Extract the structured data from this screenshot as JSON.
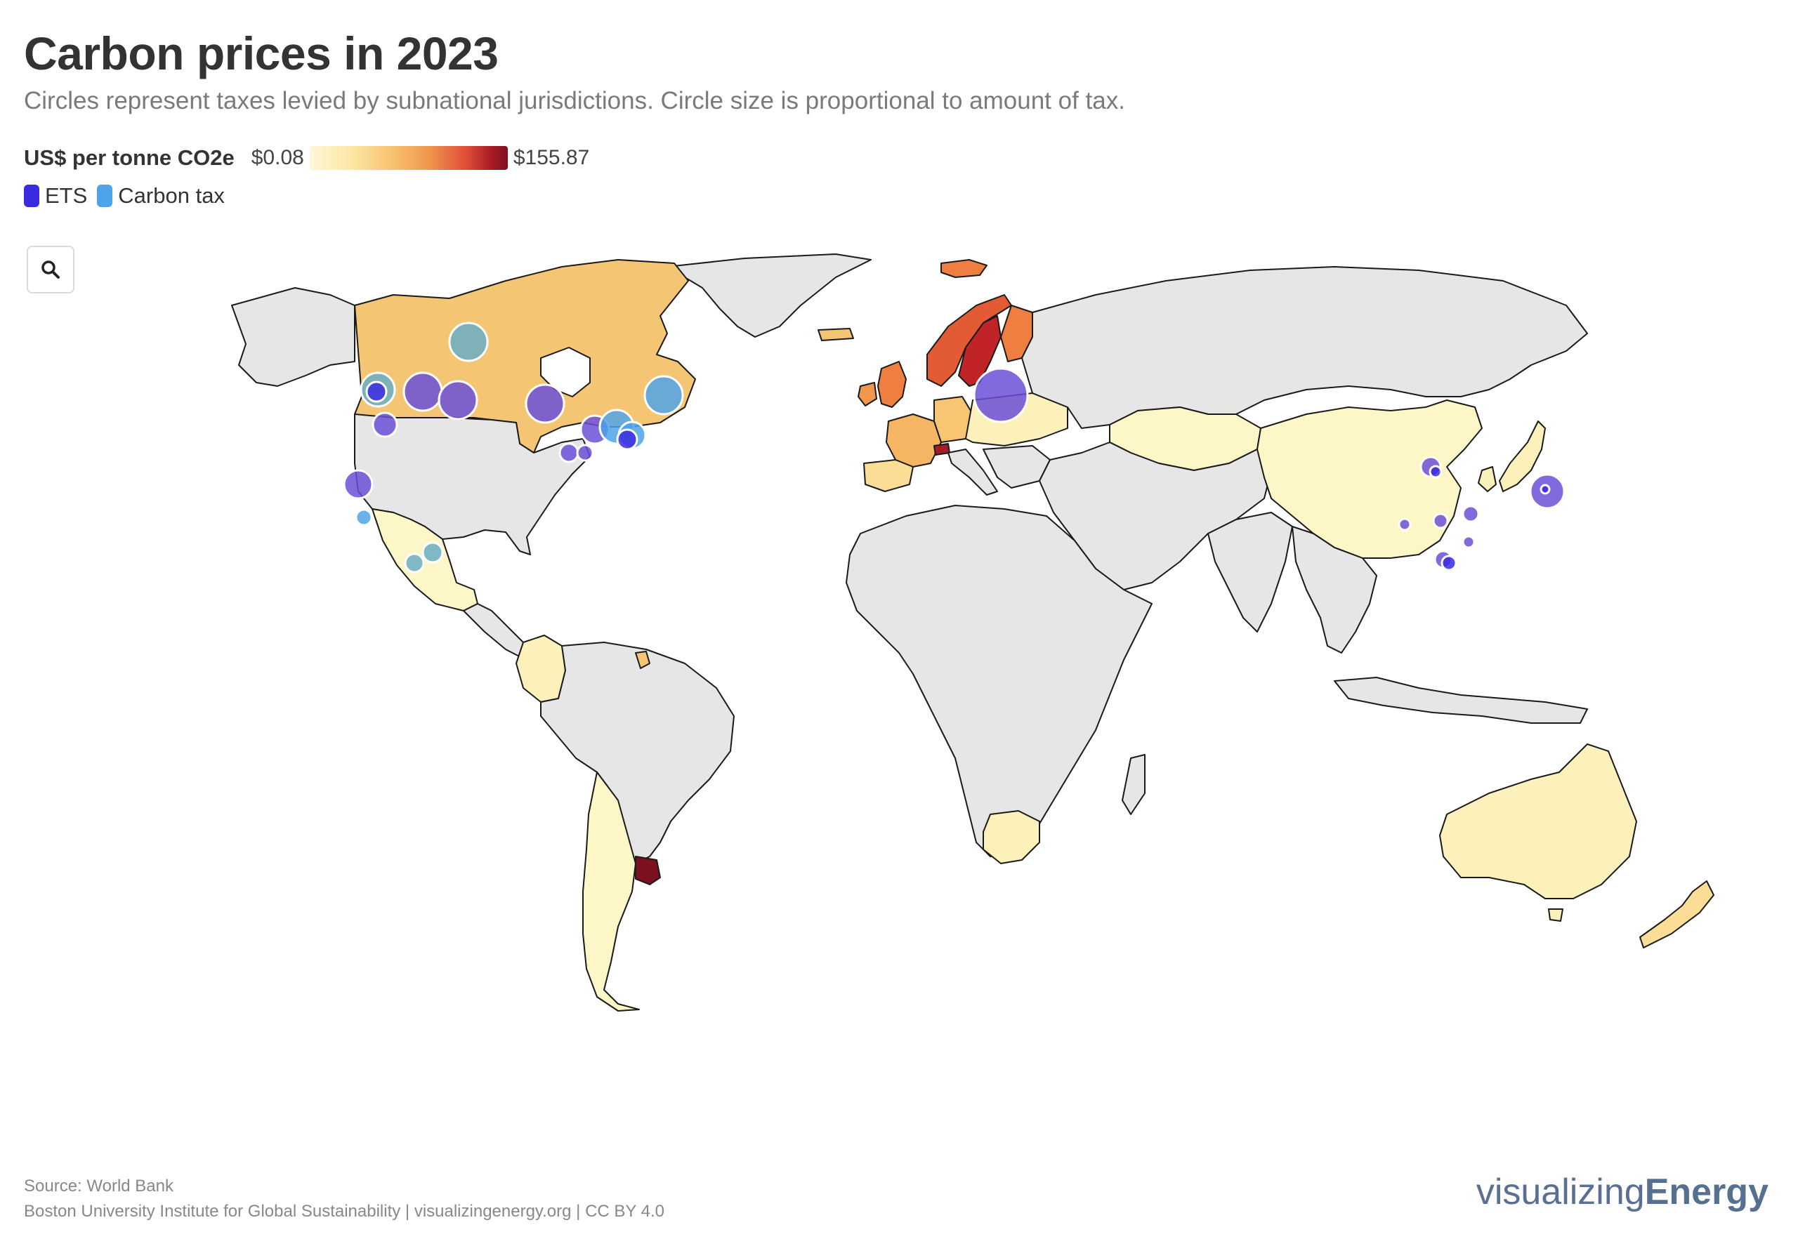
{
  "title": "Carbon prices in 2023",
  "subtitle": "Circles represent taxes levied by subnational jurisdictions. Circle size is proportional to amount of tax.",
  "legend": {
    "scale_title": "US$ per tonne CO2e",
    "min_label": "$0.08",
    "max_label": "$155.87",
    "types": [
      {
        "name": "ETS",
        "color": "#3b2be0"
      },
      {
        "name": "Carbon tax",
        "color": "#4fa3e8"
      }
    ]
  },
  "zoom_icon": "search-icon",
  "colors": {
    "no_data": "#e6e6e6",
    "border": "#1a1a1a",
    "ets": "#6b4fd8",
    "ets_dark": "#3b2be0",
    "tax": "#4fa3e8",
    "tax_teal": "#6aaec4"
  },
  "source": "Source: World Bank",
  "credit": "Boston University Institute for Global Sustainability | visualizingenergy.org | CC BY 4.0",
  "brand": {
    "part1": "visualizing",
    "part2": "Energy"
  }
}
